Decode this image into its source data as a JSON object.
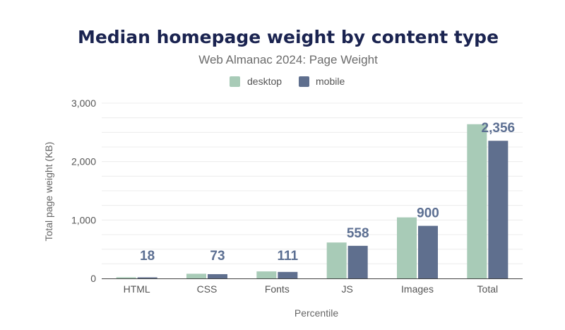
{
  "chart_data": {
    "type": "bar",
    "title": "Median homepage weight by content type",
    "subtitle": "Web Almanac 2024: Page Weight",
    "xlabel": "Percentile",
    "ylabel": "Total page weight (KB)",
    "categories": [
      "HTML",
      "CSS",
      "Fonts",
      "JS",
      "Images",
      "Total"
    ],
    "series": [
      {
        "name": "desktop",
        "color": "#a8cbb7",
        "values": [
          20,
          80,
          120,
          615,
          1045,
          2640
        ]
      },
      {
        "name": "mobile",
        "color": "#5f6f8e",
        "values": [
          18,
          73,
          111,
          558,
          900,
          2356
        ]
      }
    ],
    "data_labels": [
      "18",
      "73",
      "111",
      "558",
      "900",
      "2,356"
    ],
    "data_label_series": "mobile",
    "ylim": [
      0,
      3000
    ],
    "yticks": [
      0,
      1000,
      2000,
      3000
    ],
    "ytick_labels": [
      "0",
      "1,000",
      "2,000",
      "3,000"
    ],
    "grid": true,
    "legend_position": "top"
  }
}
